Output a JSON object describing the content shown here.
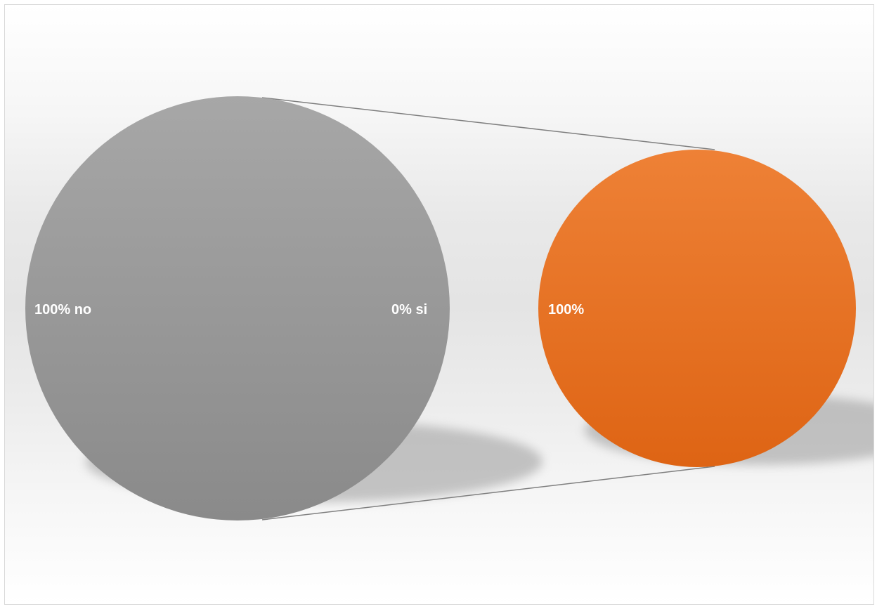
{
  "chart_data": {
    "type": "pie",
    "subtype": "pie-of-pie",
    "title": "",
    "primary_pie": {
      "slices": [
        {
          "name": "no",
          "value": 100,
          "label": "100% no",
          "color": "#9e9e9e"
        },
        {
          "name": "si",
          "value": 0,
          "label": "0% si"
        }
      ]
    },
    "secondary_pie": {
      "slices": [
        {
          "value": 100,
          "label": "100%",
          "color": "#e97830"
        }
      ]
    },
    "legend": "none",
    "connector_color": "#7f7f7f"
  }
}
